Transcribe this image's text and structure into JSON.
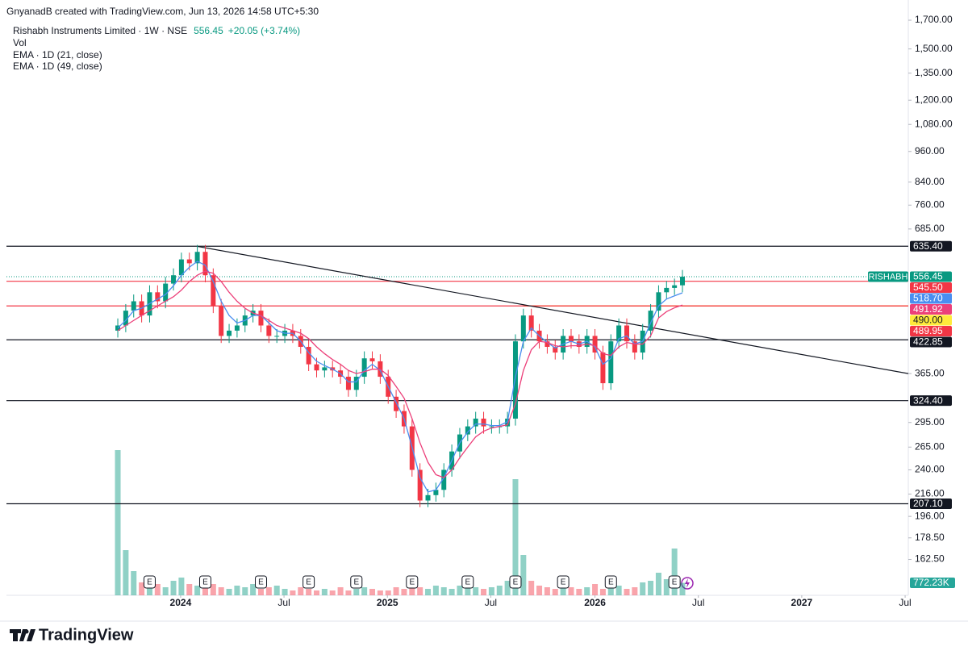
{
  "chart_data": {
    "type": "candlestick",
    "credit": "GnyanadB created with TradingView.com, Jun 13, 2026 14:58 UTC+5:30",
    "title": "Rishabh Instruments Limited · 1W · NSE",
    "last_price": 556.45,
    "change": "+20.05 (+3.74%)",
    "symbol": "RISHABH",
    "brand": "TradingView",
    "log_scale": true,
    "grid": false,
    "up_color": "#089981",
    "down_color": "#f23645",
    "ylim": [
      139,
      1761
    ],
    "yticks": [
      {
        "value": 1700,
        "label": "1,700.00"
      },
      {
        "value": 1500,
        "label": "1,500.00"
      },
      {
        "value": 1350,
        "label": "1,350.00"
      },
      {
        "value": 1200,
        "label": "1,200.00"
      },
      {
        "value": 1080,
        "label": "1,080.00"
      },
      {
        "value": 960,
        "label": "960.00"
      },
      {
        "value": 840,
        "label": "840.00"
      },
      {
        "value": 760,
        "label": "760.00"
      },
      {
        "value": 685,
        "label": "685.00"
      },
      {
        "value": 365,
        "label": "365.00"
      },
      {
        "value": 295,
        "label": "295.00"
      },
      {
        "value": 265,
        "label": "265.00"
      },
      {
        "value": 240,
        "label": "240.00"
      },
      {
        "value": 216,
        "label": "216.00"
      },
      {
        "value": 196,
        "label": "196.00"
      },
      {
        "value": 178.5,
        "label": "178.50"
      },
      {
        "value": 162.5,
        "label": "162.50"
      }
    ],
    "xlim": [
      -14,
      99.4
    ],
    "xticks": [
      {
        "value": 7.9,
        "label": "2024"
      },
      {
        "value": 20.9,
        "label": "Jul"
      },
      {
        "value": 33.9,
        "label": "2025"
      },
      {
        "value": 46.9,
        "label": "Jul"
      },
      {
        "value": 60,
        "label": "2026"
      },
      {
        "value": 73,
        "label": "Jul"
      },
      {
        "value": 86,
        "label": "2027"
      },
      {
        "value": 99,
        "label": "Jul"
      }
    ],
    "open": [
      440,
      450,
      480,
      500,
      470,
      520,
      500,
      540,
      560,
      600,
      590,
      620,
      560,
      490,
      430,
      440,
      450,
      470,
      480,
      450,
      430,
      430,
      440,
      430,
      410,
      380,
      370,
      375,
      370,
      360,
      340,
      360,
      390,
      385,
      360,
      330,
      310,
      290,
      240,
      210,
      215,
      220,
      240,
      260,
      280,
      290,
      300,
      290,
      290,
      290,
      300,
      420,
      470,
      440,
      420,
      410,
      400,
      430,
      420,
      410,
      430,
      400,
      350,
      420,
      450,
      420,
      400,
      440,
      480,
      520,
      530,
      536
    ],
    "high": [
      464,
      494,
      515,
      515,
      536,
      536,
      556,
      577,
      618,
      618,
      639,
      639,
      577,
      505,
      453,
      464,
      484,
      494,
      494,
      464,
      443,
      453,
      453,
      443,
      422,
      391,
      386,
      386,
      381,
      371,
      371,
      402,
      402,
      397,
      371,
      340,
      319,
      299,
      247,
      221,
      227,
      247,
      268,
      288,
      299,
      309,
      309,
      299,
      299,
      309,
      433,
      484,
      484,
      453,
      433,
      422,
      443,
      443,
      433,
      443,
      443,
      412,
      433,
      464,
      464,
      433,
      453,
      494,
      536,
      546,
      552,
      573
    ],
    "low": [
      427,
      437,
      466,
      456,
      456,
      485,
      485,
      524,
      543,
      572,
      572,
      543,
      475,
      417,
      417,
      427,
      437,
      456,
      437,
      417,
      417,
      417,
      417,
      398,
      369,
      359,
      359,
      359,
      349,
      330,
      330,
      349,
      373,
      349,
      320,
      301,
      281,
      233,
      204,
      204,
      209,
      213,
      233,
      252,
      272,
      281,
      281,
      281,
      281,
      281,
      291,
      407,
      427,
      407,
      398,
      388,
      388,
      407,
      398,
      398,
      388,
      340,
      340,
      407,
      407,
      388,
      388,
      427,
      466,
      504,
      514,
      520
    ],
    "close": [
      450,
      480,
      500,
      470,
      520,
      500,
      540,
      560,
      600,
      590,
      620,
      560,
      490,
      430,
      440,
      450,
      470,
      480,
      450,
      430,
      430,
      440,
      430,
      410,
      380,
      370,
      375,
      370,
      360,
      340,
      360,
      390,
      385,
      360,
      330,
      310,
      290,
      240,
      210,
      215,
      220,
      240,
      260,
      280,
      290,
      300,
      290,
      290,
      290,
      300,
      420,
      470,
      440,
      420,
      410,
      400,
      430,
      420,
      410,
      430,
      400,
      350,
      420,
      450,
      420,
      400,
      440,
      480,
      520,
      530,
      536,
      556.45
    ],
    "volume_name": "Vol",
    "volume": [
      9000,
      2800,
      1500,
      800,
      600,
      700,
      500,
      900,
      1100,
      700,
      600,
      900,
      700,
      500,
      400,
      600,
      500,
      700,
      400,
      500,
      600,
      400,
      300,
      500,
      400,
      300,
      400,
      300,
      500,
      300,
      400,
      500,
      400,
      300,
      300,
      500,
      400,
      700,
      500,
      400,
      600,
      500,
      400,
      600,
      800,
      500,
      400,
      500,
      600,
      900,
      7200,
      2500,
      900,
      600,
      500,
      400,
      600,
      500,
      400,
      500,
      700,
      400,
      500,
      600,
      400,
      500,
      800,
      900,
      1400,
      1000,
      2900,
      772.23
    ],
    "volume_label": {
      "value": 772.23,
      "label": "772.23K"
    },
    "series": [
      {
        "name": "EMA · 1D (21, close)",
        "color": "#4a8ef0",
        "values": [
          445,
          460,
          480,
          485,
          495,
          505,
          515,
          535,
          560,
          580,
          595,
          585,
          545,
          500,
          470,
          455,
          460,
          470,
          470,
          455,
          440,
          435,
          435,
          420,
          400,
          385,
          378,
          372,
          365,
          352,
          352,
          370,
          380,
          370,
          345,
          322,
          300,
          265,
          232,
          218,
          220,
          232,
          250,
          270,
          283,
          293,
          293,
          291,
          291,
          296,
          360,
          420,
          445,
          430,
          418,
          408,
          415,
          420,
          415,
          420,
          410,
          380,
          390,
          425,
          430,
          415,
          420,
          455,
          490,
          505,
          512,
          518.7
        ]
      },
      {
        "name": "EMA · 1D (49, close)",
        "color": "#ec407a",
        "values": [
          440,
          450,
          460,
          470,
          480,
          490,
          500,
          510,
          525,
          545,
          560,
          570,
          565,
          545,
          520,
          500,
          485,
          475,
          470,
          460,
          450,
          445,
          440,
          435,
          425,
          410,
          398,
          388,
          380,
          370,
          365,
          368,
          372,
          372,
          362,
          345,
          328,
          300,
          270,
          248,
          235,
          232,
          240,
          253,
          265,
          277,
          284,
          288,
          290,
          292,
          320,
          370,
          405,
          420,
          418,
          412,
          410,
          412,
          412,
          415,
          412,
          398,
          395,
          410,
          418,
          415,
          415,
          430,
          465,
          478,
          486,
          491.92
        ]
      }
    ],
    "price_labels": [
      {
        "value": 635.4,
        "label": "635.40",
        "color": "#131722",
        "line": true
      },
      {
        "value": 556.45,
        "label": "556.45",
        "color": "#089981"
      },
      {
        "value": 545.5,
        "label": "545.50",
        "color": "#f23645",
        "line": true
      },
      {
        "value": 518.7,
        "label": "518.70",
        "color": "#4a8ef0"
      },
      {
        "value": 491.92,
        "label": "491.92",
        "color": "#ec407a"
      },
      {
        "value": 490,
        "label": "490.00",
        "color": "#ffeb3b",
        "line": true,
        "line_from": 51,
        "line_color": "#ff9800"
      },
      {
        "value": 489.95,
        "label": "489.95",
        "color": "#f23645",
        "line": true
      },
      {
        "value": 422.85,
        "label": "422.85",
        "color": "#131722",
        "line": true
      },
      {
        "value": 324.4,
        "label": "324.40",
        "color": "#131722",
        "line": true
      },
      {
        "value": 207.1,
        "label": "207.10",
        "color": "#131722",
        "line": true
      }
    ],
    "trendline": {
      "start_index": 10,
      "start_price": 635,
      "end_index": 99.4,
      "end_price": 365,
      "color": "#131722"
    },
    "events": [
      {
        "index": 4,
        "label": "E"
      },
      {
        "index": 11,
        "label": "E"
      },
      {
        "index": 18,
        "label": "E"
      },
      {
        "index": 24,
        "label": "E"
      },
      {
        "index": 30,
        "label": "E"
      },
      {
        "index": 37,
        "label": "E"
      },
      {
        "index": 44,
        "label": "E"
      },
      {
        "index": 50,
        "label": "E"
      },
      {
        "index": 56,
        "label": "E"
      },
      {
        "index": 62,
        "label": "E"
      },
      {
        "index": 70,
        "label": "E"
      }
    ]
  }
}
